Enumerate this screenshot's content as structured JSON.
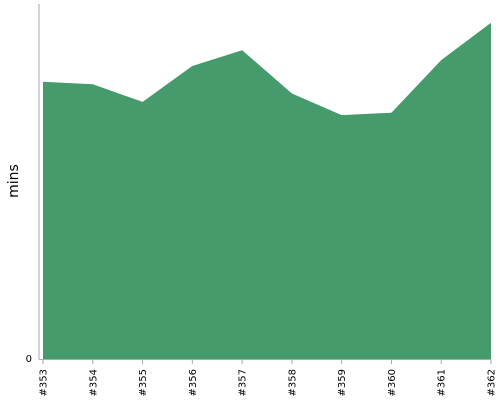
{
  "chart_data": {
    "type": "area",
    "title": "",
    "xlabel": "",
    "ylabel": "mins",
    "categories": [
      "#353",
      "#354",
      "#355",
      "#356",
      "#357",
      "#358",
      "#359",
      "#360",
      "#361",
      "#362"
    ],
    "series": [
      {
        "values": [
          56.4,
          55.9,
          52.3,
          59.6,
          62.8,
          54.0,
          49.6,
          50.1,
          60.8,
          68.4
        ]
      }
    ],
    "ylim": [
      0,
      72
    ],
    "y_ticks": [
      "0"
    ],
    "grid": false,
    "fill_color": "#459b6c",
    "axis_color": "#aaaaaa"
  }
}
